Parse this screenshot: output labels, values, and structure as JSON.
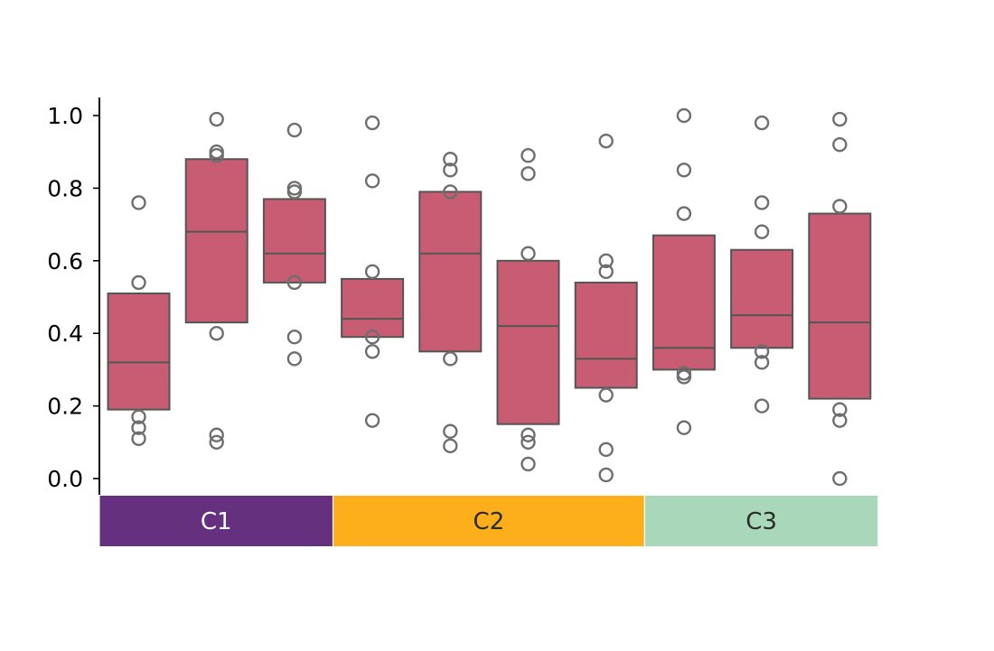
{
  "chart_data": {
    "type": "box",
    "title": "",
    "xlabel": "",
    "ylabel": "",
    "ylim": [
      0.0,
      1.0
    ],
    "yticks": [
      "0.0",
      "0.2",
      "0.4",
      "0.6",
      "0.8",
      "1.0"
    ],
    "grid": false,
    "groups": [
      {
        "label": "C1",
        "color": "#65307d",
        "text_color": "#ffffff",
        "boxes": [
          {
            "q1": 0.19,
            "median": 0.32,
            "q3": 0.51,
            "outliers": [
              0.76,
              0.54,
              0.17,
              0.14,
              0.11
            ]
          },
          {
            "q1": 0.43,
            "median": 0.68,
            "q3": 0.88,
            "outliers": [
              0.99,
              0.9,
              0.89,
              0.4,
              0.12,
              0.1
            ]
          },
          {
            "q1": 0.54,
            "median": 0.62,
            "q3": 0.77,
            "outliers": [
              0.96,
              0.8,
              0.79,
              0.54,
              0.39,
              0.33
            ]
          }
        ]
      },
      {
        "label": "C2",
        "color": "#fcaf1a",
        "text_color": "#2a2a2a",
        "boxes": [
          {
            "q1": 0.39,
            "median": 0.44,
            "q3": 0.55,
            "outliers": [
              0.98,
              0.82,
              0.57,
              0.39,
              0.35,
              0.16
            ]
          },
          {
            "q1": 0.35,
            "median": 0.62,
            "q3": 0.79,
            "outliers": [
              0.88,
              0.85,
              0.79,
              0.33,
              0.13,
              0.09
            ]
          },
          {
            "q1": 0.15,
            "median": 0.42,
            "q3": 0.6,
            "outliers": [
              0.89,
              0.84,
              0.62,
              0.12,
              0.1,
              0.04
            ]
          },
          {
            "q1": 0.25,
            "median": 0.33,
            "q3": 0.54,
            "outliers": [
              0.93,
              0.6,
              0.57,
              0.23,
              0.08,
              0.01
            ]
          }
        ]
      },
      {
        "label": "C3",
        "color": "#a8d7b9",
        "text_color": "#2a2a2a",
        "boxes": [
          {
            "q1": 0.3,
            "median": 0.36,
            "q3": 0.67,
            "outliers": [
              1.0,
              0.85,
              0.73,
              0.29,
              0.28,
              0.14
            ]
          },
          {
            "q1": 0.36,
            "median": 0.45,
            "q3": 0.63,
            "outliers": [
              0.98,
              0.76,
              0.68,
              0.35,
              0.32,
              0.2
            ]
          },
          {
            "q1": 0.22,
            "median": 0.43,
            "q3": 0.73,
            "outliers": [
              0.99,
              0.92,
              0.75,
              0.19,
              0.16,
              0.0
            ]
          }
        ]
      }
    ],
    "colors": {
      "box_fill": "#c85c72",
      "box_edge": "#555555",
      "outlier_edge": "#6e6e6e",
      "axis": "#000000"
    }
  }
}
